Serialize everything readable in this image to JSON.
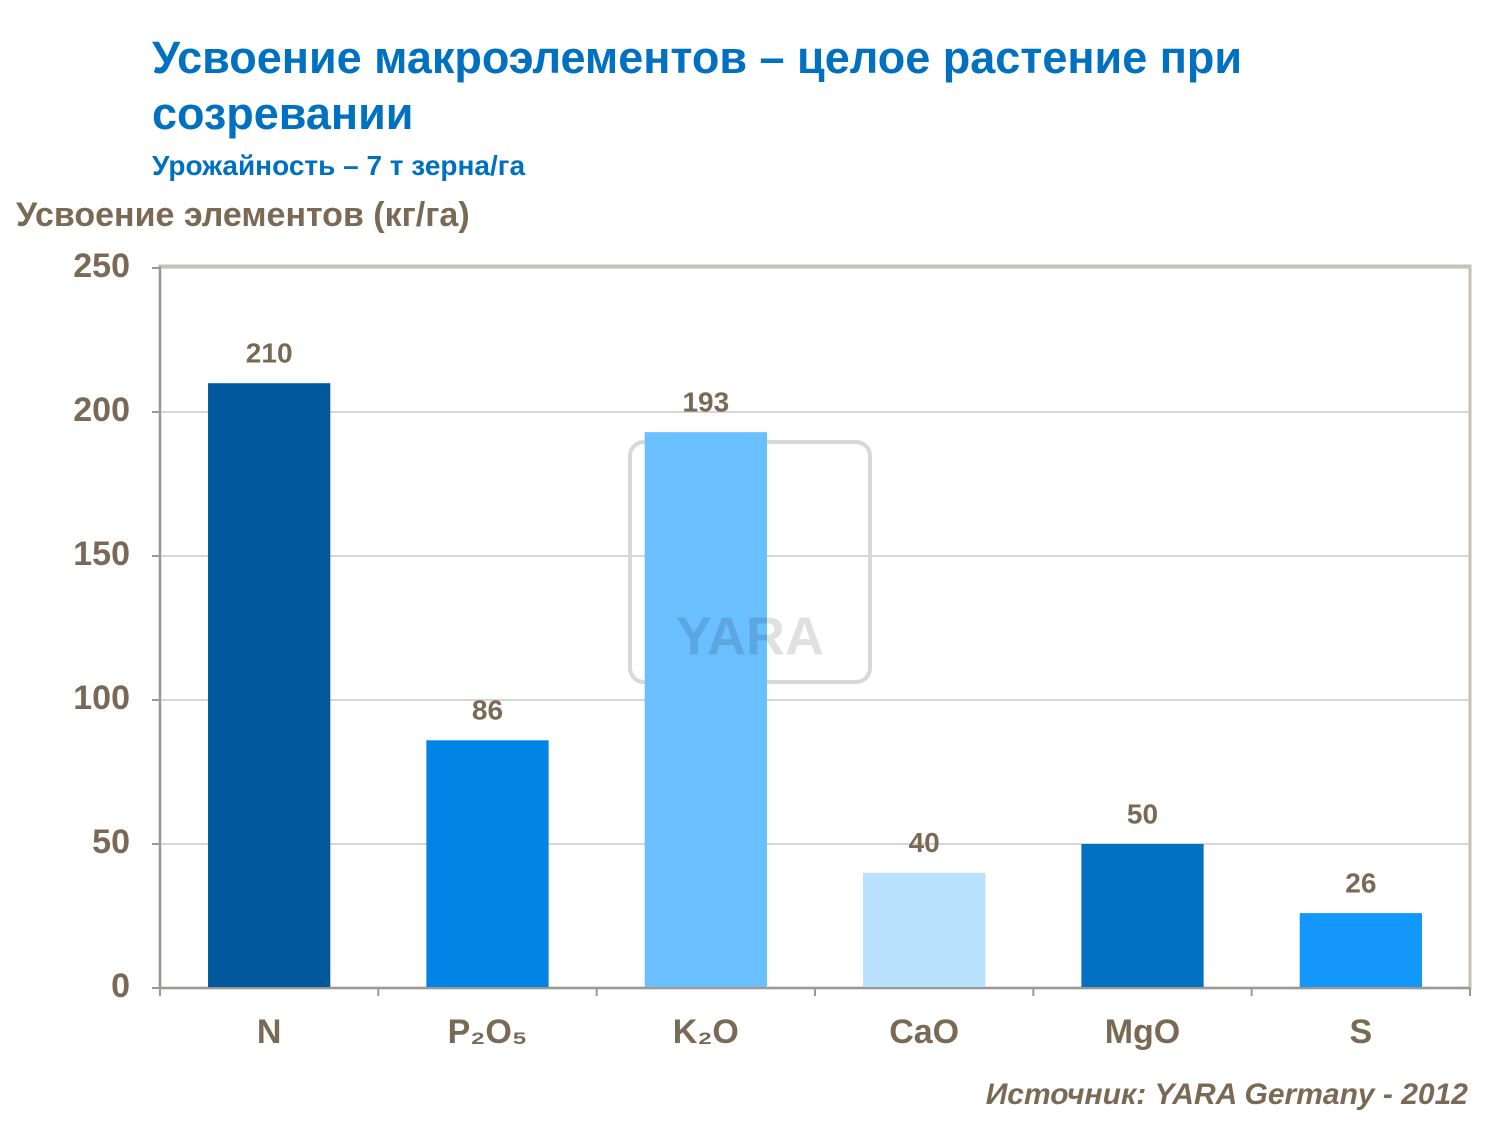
{
  "chart_data": {
    "type": "bar",
    "title": "Усвоение макроэлементов – целое растение при созревании",
    "subtitle": "Урожайность  – 7 т зерна/га",
    "y_axis_label": "Усвоение элементов (кг/га)",
    "source": "Источник:  YARA Germany - 2012",
    "watermark": "YARA",
    "categories": [
      "N",
      "P₂O₅",
      "K₂O",
      "CaO",
      "MgO",
      "S"
    ],
    "values": [
      210,
      86,
      193,
      40,
      50,
      26
    ],
    "colors": [
      "#02589c",
      "#0284e5",
      "#6abfff",
      "#b9e0fd",
      "#0171c1",
      "#1497fb"
    ],
    "ylim": [
      0,
      250
    ],
    "yticks": [
      0,
      50,
      100,
      150,
      200,
      250
    ],
    "grid": true
  }
}
